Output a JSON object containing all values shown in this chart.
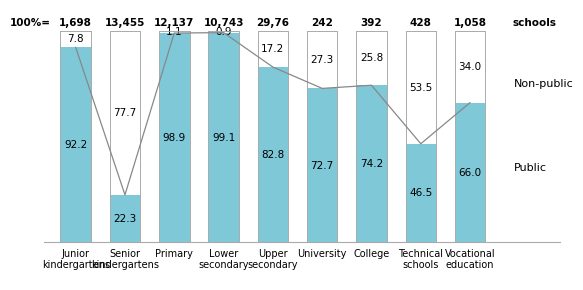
{
  "categories": [
    "Junior\nkindergartens",
    "Senior\nkindergartens",
    "Primary",
    "Lower\nsecondary",
    "Upper\nsecondary",
    "University",
    "College",
    "Technical\nschools",
    "Vocational\neducation"
  ],
  "totals": [
    "1,698",
    "13,455",
    "12,137",
    "10,743",
    "29,76",
    "242",
    "392",
    "428",
    "1,058"
  ],
  "public": [
    92.2,
    22.3,
    98.9,
    99.1,
    82.8,
    72.7,
    74.2,
    46.5,
    66.0
  ],
  "nonpublic": [
    7.8,
    77.7,
    1.1,
    0.9,
    17.2,
    27.3,
    25.8,
    53.5,
    34.0
  ],
  "bar_color": "#7ec8d8",
  "border_color": "#aaaaaa",
  "line_color": "#888888",
  "bg_color": "#ffffff",
  "bar_width": 0.62,
  "label_public": "Public",
  "label_nonpublic": "Non-public",
  "ylabel_100": "100%=",
  "ylabel_schools": "schools",
  "font_size_values": 7.5,
  "font_size_totals": 7.5,
  "font_size_labels": 7.0,
  "font_size_legend": 8.0
}
